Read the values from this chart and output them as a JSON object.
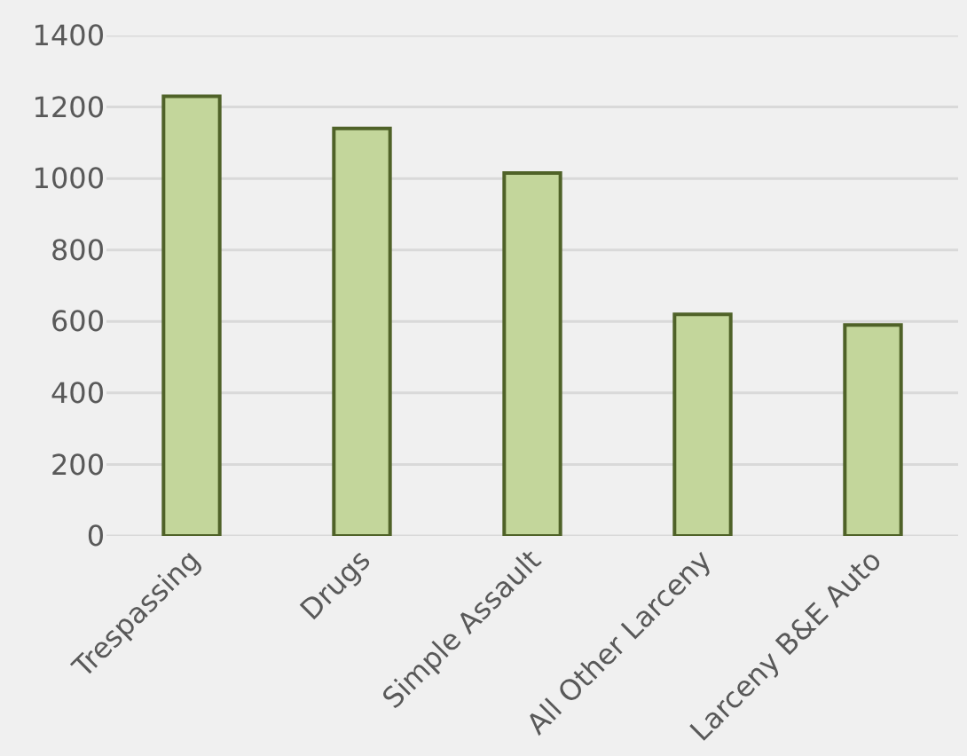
{
  "chart_data": {
    "type": "bar",
    "categories": [
      "Trespassing",
      "Drugs",
      "Simple Assault",
      "All Other Larceny",
      "Larceny B&E Auto"
    ],
    "values": [
      1230,
      1140,
      1015,
      620,
      590
    ],
    "color": "#c3d69b",
    "ylim": [
      0,
      1400
    ],
    "yticks": [
      0,
      200,
      400,
      600,
      800,
      1000,
      1200,
      1400
    ],
    "grid": "y"
  }
}
